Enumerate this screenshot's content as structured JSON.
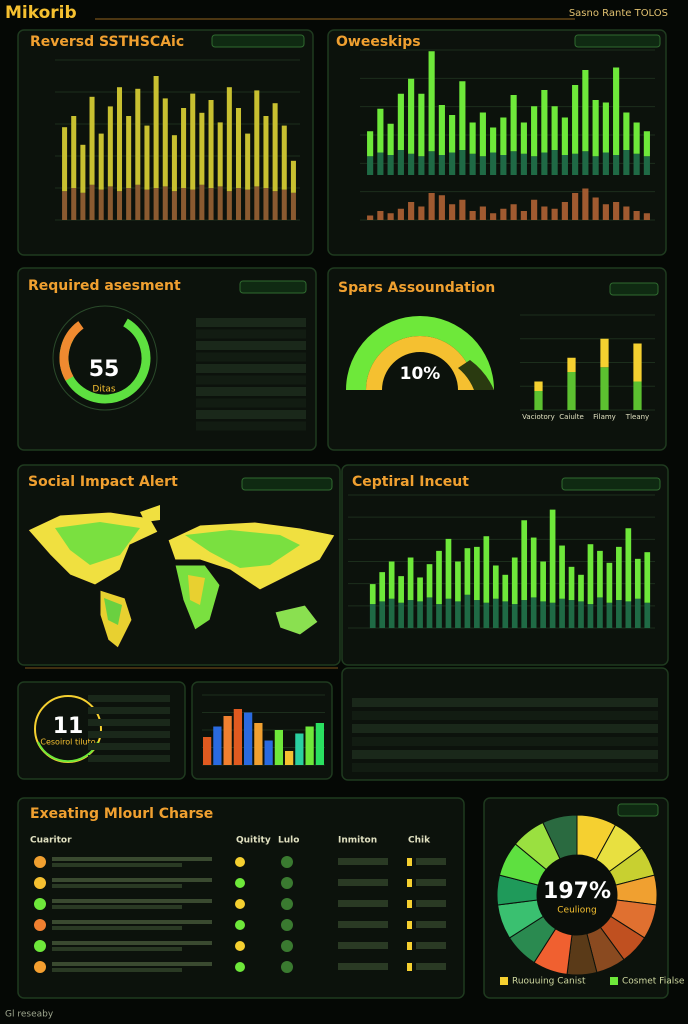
{
  "header": {
    "title": "Mikorib",
    "subtitle": "Sasno Rante TOLOS"
  },
  "footer": "Gl reseaby",
  "panels": [
    {
      "title": "Reversd SSTHSCAic",
      "chart": {
        "ylim": [
          0,
          100
        ],
        "series": [
          {
            "color": "#8a5a30",
            "values": [
              18,
              20,
              17,
              22,
              19,
              21,
              18,
              20,
              22,
              19,
              20,
              21,
              18,
              20,
              19,
              22,
              20,
              21,
              18,
              20,
              19,
              21,
              20,
              18,
              19,
              17
            ]
          },
          {
            "color": "#c8c030",
            "values": [
              40,
              45,
              30,
              55,
              35,
              50,
              65,
              45,
              60,
              40,
              70,
              55,
              35,
              50,
              60,
              45,
              55,
              40,
              65,
              50,
              35,
              60,
              45,
              55,
              40,
              20
            ]
          }
        ]
      }
    },
    {
      "title": "Oweeskips",
      "chart": {
        "ylim": [
          0,
          100
        ],
        "series": [
          {
            "color": "#1f6a45",
            "values": [
              15,
              18,
              16,
              20,
              17,
              15,
              19,
              16,
              18,
              20,
              17,
              15,
              18,
              16,
              19,
              17,
              15,
              18,
              20,
              16,
              17,
              19,
              15,
              18,
              16,
              20,
              17,
              15
            ]
          },
          {
            "color": "#6ee83a",
            "values": [
              20,
              35,
              25,
              45,
              60,
              50,
              80,
              40,
              30,
              55,
              25,
              35,
              20,
              30,
              45,
              25,
              40,
              50,
              35,
              30,
              55,
              65,
              45,
              40,
              70,
              30,
              25,
              20
            ]
          }
        ]
      },
      "chart2": {
        "ylim": [
          0,
          100
        ],
        "series": [
          {
            "color": "#a05a30",
            "values": [
              10,
              20,
              15,
              25,
              40,
              30,
              60,
              55,
              35,
              45,
              20,
              30,
              15,
              25,
              35,
              20,
              45,
              30,
              25,
              40,
              60,
              70,
              50,
              35,
              40,
              30,
              20,
              15
            ]
          }
        ]
      }
    },
    {
      "title": "Required asesment",
      "center_value": "55",
      "center_label": "Ditas"
    },
    {
      "title": "Spars Assoundation",
      "gauge_value": "10%",
      "categories": [
        "Vaciotory",
        "Caiulte",
        "Filamy",
        "Tleany"
      ],
      "chart": {
        "ylim": [
          0,
          100
        ],
        "series": [
          {
            "color": "#5cc030",
            "values": [
              20,
              40,
              45,
              30
            ]
          },
          {
            "color": "#f5d030",
            "values": [
              10,
              15,
              30,
              40
            ]
          }
        ]
      }
    },
    {
      "title": "Social Impact Alert"
    },
    {
      "title": "Ceptiral Inceut",
      "chart": {
        "ylim": [
          0,
          100
        ],
        "series": [
          {
            "color": "#1f6a45",
            "values": [
              18,
              20,
              22,
              19,
              21,
              20,
              23,
              18,
              22,
              20,
              25,
              21,
              19,
              22,
              20,
              18,
              21,
              23,
              20,
              19,
              22,
              21,
              20,
              18,
              23,
              19,
              21,
              20,
              22,
              19
            ]
          },
          {
            "color": "#6ee83a",
            "values": [
              15,
              22,
              28,
              20,
              32,
              18,
              25,
              40,
              45,
              30,
              35,
              40,
              50,
              25,
              20,
              35,
              60,
              45,
              30,
              70,
              40,
              25,
              20,
              45,
              35,
              30,
              40,
              55,
              30,
              38
            ]
          }
        ]
      }
    },
    {
      "value": "11",
      "label": "Cesoirol tiluto"
    },
    {
      "chart": {
        "ylim": [
          0,
          100
        ],
        "values": [
          40,
          55,
          70,
          80,
          75,
          60,
          35,
          50,
          20,
          45,
          55,
          60
        ],
        "colors": [
          "#e05a20",
          "#2a6ae0",
          "#f08030",
          "#e05a20",
          "#2a6ae0",
          "#f0a030",
          "#2a6ae0",
          "#6ee83a",
          "#f5c030",
          "#2ad0a0",
          "#6ee83a",
          "#2ae060"
        ]
      }
    },
    {},
    {
      "title": "Exeating Mlourl Charse",
      "headers": [
        "Cuaritor",
        "Quitity",
        "Lulo",
        "Inmiton",
        "Chik"
      ]
    },
    {
      "center_value": "197%",
      "center_label": "Ceuliong",
      "legend": [
        "Ruouuing Canist",
        "Cosmet Fialse"
      ],
      "slices": [
        {
          "color": "#f5d030",
          "value": 8
        },
        {
          "color": "#e8e040",
          "value": 7
        },
        {
          "color": "#c8d030",
          "value": 6
        },
        {
          "color": "#f0a030",
          "value": 6
        },
        {
          "color": "#e07030",
          "value": 7
        },
        {
          "color": "#c05020",
          "value": 6
        },
        {
          "color": "#8a4a20",
          "value": 6
        },
        {
          "color": "#5a3a18",
          "value": 6
        },
        {
          "color": "#f06030",
          "value": 7
        },
        {
          "color": "#2a8a50",
          "value": 7
        },
        {
          "color": "#3ac070",
          "value": 7
        },
        {
          "color": "#1f9a5a",
          "value": 6
        },
        {
          "color": "#5ee040",
          "value": 7
        },
        {
          "color": "#9ae040",
          "value": 7
        },
        {
          "color": "#2a6a40",
          "value": 7
        }
      ]
    }
  ]
}
